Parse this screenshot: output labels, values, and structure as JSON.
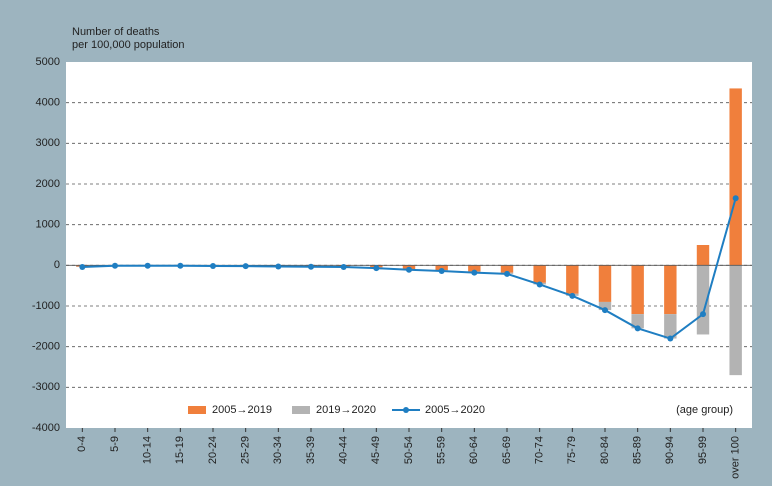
{
  "chart_data": {
    "type": "bar",
    "ylabel": [
      "Number of deaths",
      "per 100,000 population"
    ],
    "xlabel": "(age group)",
    "categories": [
      "0-4",
      "5-9",
      "10-14",
      "15-19",
      "20-24",
      "25-29",
      "30-34",
      "35-39",
      "40-44",
      "45-49",
      "50-54",
      "55-59",
      "60-64",
      "65-69",
      "70-74",
      "75-79",
      "80-84",
      "85-89",
      "90-94",
      "95-99",
      "over 100"
    ],
    "series": [
      {
        "name": "2005→2019",
        "kind": "bar",
        "color": "#f07f3c",
        "values": [
          -30,
          -5,
          -5,
          -5,
          -10,
          -15,
          -20,
          -25,
          -30,
          -50,
          -90,
          -120,
          -150,
          -180,
          -430,
          -700,
          -900,
          -1200,
          -1200,
          500,
          4350
        ]
      },
      {
        "name": "2019→2020",
        "kind": "bar",
        "color": "#b3b3b3",
        "values": [
          -10,
          -5,
          -5,
          -5,
          -5,
          -5,
          -10,
          -10,
          -10,
          -20,
          -20,
          -20,
          -30,
          -30,
          -40,
          -50,
          -200,
          -350,
          -600,
          -1700,
          -2700
        ]
      },
      {
        "name": "2005→2020",
        "kind": "line",
        "color": "#1f7ec2",
        "values": [
          -40,
          -10,
          -10,
          -10,
          -15,
          -20,
          -30,
          -35,
          -40,
          -70,
          -110,
          -140,
          -180,
          -210,
          -470,
          -750,
          -1100,
          -1550,
          -1800,
          -1200,
          1650
        ]
      }
    ],
    "ylim": [
      -4000,
      5000
    ],
    "yticks": [
      -4000,
      -3000,
      -2000,
      -1000,
      0,
      1000,
      2000,
      3000,
      4000,
      5000
    ],
    "grid": true
  }
}
